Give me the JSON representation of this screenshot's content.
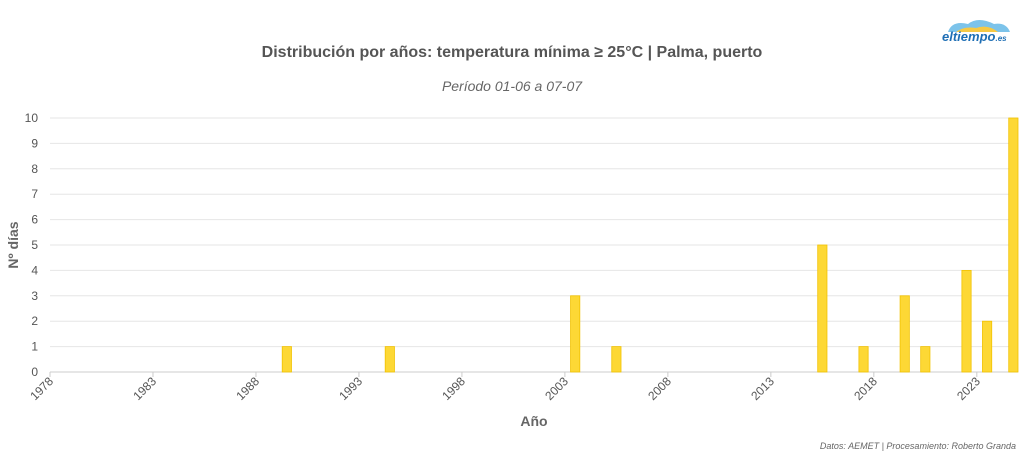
{
  "chart_data": {
    "type": "bar",
    "title": "Distribución por años: temperatura mínima ≥ 25°C | Palma, puerto",
    "subtitle": "Período 01-06 a 07-07",
    "xlabel": "Año",
    "ylabel": "Nº días",
    "ylim": [
      0,
      10
    ],
    "yticks": [
      0,
      1,
      2,
      3,
      4,
      5,
      6,
      7,
      8,
      9,
      10
    ],
    "xlim": [
      1978,
      2024
    ],
    "xticks": [
      1978,
      1983,
      1988,
      1993,
      1998,
      2003,
      2008,
      2013,
      2018,
      2023
    ],
    "grid": true,
    "bar_color": "#fdd835",
    "bar_stroke": "#f2c200",
    "x": [
      1989,
      1994,
      2003,
      2005,
      2015,
      2017,
      2019,
      2020,
      2022,
      2023,
      2025
    ],
    "values": [
      1,
      1,
      3,
      1,
      5,
      1,
      3,
      1,
      4,
      2,
      10
    ]
  },
  "logo": {
    "text": "eltiempo",
    "suffix": ".es"
  },
  "credits": "Datos: AEMET | Procesamiento: Roberto Granda"
}
